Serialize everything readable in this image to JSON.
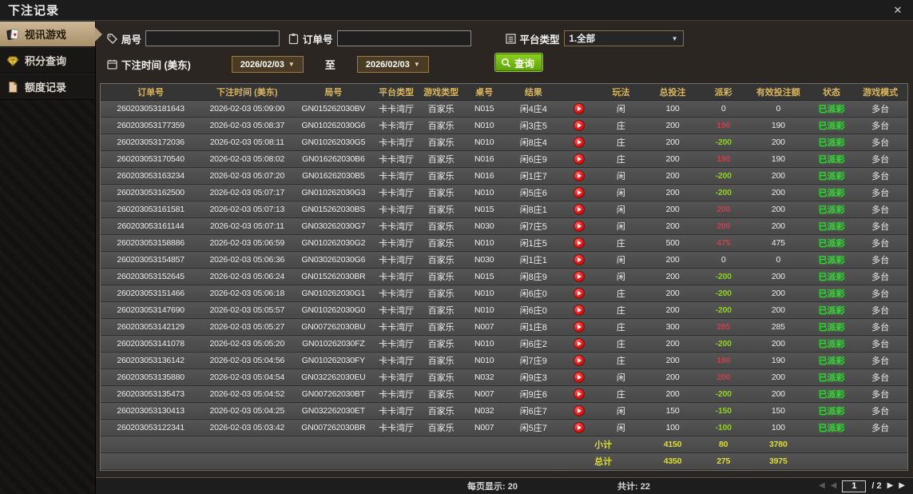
{
  "window": {
    "title": "下注记录",
    "close_label": "✕"
  },
  "sidebar": {
    "items": [
      {
        "id": "video-games",
        "label": "视讯游戏",
        "icon": "playing-cards-icon",
        "active": true
      },
      {
        "id": "points-query",
        "label": "积分查询",
        "icon": "diamond-icon",
        "active": false
      },
      {
        "id": "quota-records",
        "label": "额度记录",
        "icon": "document-icon",
        "active": false
      }
    ]
  },
  "filters": {
    "round_no": {
      "label": "局号",
      "value": "",
      "icon": "tag-icon"
    },
    "order_no": {
      "label": "订单号",
      "value": "",
      "icon": "clipboard-icon"
    },
    "platform_type": {
      "label": "平台类型",
      "value": "1.全部",
      "icon": "list-icon"
    },
    "bet_time": {
      "label": "下注时间 (美东)",
      "from": "2026/02/03",
      "to_label": "至",
      "to": "2026/02/03",
      "icon": "calendar-icon"
    },
    "search_button": {
      "label": "查询",
      "icon": "magnifier-icon"
    }
  },
  "table": {
    "headers": [
      "订单号",
      "下注时间 (美东)",
      "局号",
      "平台类型",
      "游戏类型",
      "桌号",
      "结果",
      "玩法",
      "总投注",
      "派彩",
      "有效投注额",
      "状态",
      "游戏模式"
    ],
    "rows": [
      {
        "order_id": "260203053181643",
        "bet_time": "2026-02-03 05:09:00",
        "round_id": "GN015262030BV",
        "platform": "卡卡湾厅",
        "game_type": "百家乐",
        "table_no": "N015",
        "result": "闲4庄4",
        "play_type": "闲",
        "total_bet": "100",
        "payout": "0",
        "valid_bet": "0",
        "status": "已派彩",
        "game_mode": "多台"
      },
      {
        "order_id": "260203053177359",
        "bet_time": "2026-02-03 05:08:37",
        "round_id": "GN010262030G6",
        "platform": "卡卡湾厅",
        "game_type": "百家乐",
        "table_no": "N010",
        "result": "闲3庄5",
        "play_type": "庄",
        "total_bet": "200",
        "payout": "190",
        "valid_bet": "190",
        "status": "已派彩",
        "game_mode": "多台"
      },
      {
        "order_id": "260203053172036",
        "bet_time": "2026-02-03 05:08:11",
        "round_id": "GN010262030G5",
        "platform": "卡卡湾厅",
        "game_type": "百家乐",
        "table_no": "N010",
        "result": "闲8庄4",
        "play_type": "庄",
        "total_bet": "200",
        "payout": "-200",
        "valid_bet": "200",
        "status": "已派彩",
        "game_mode": "多台"
      },
      {
        "order_id": "260203053170540",
        "bet_time": "2026-02-03 05:08:02",
        "round_id": "GN016262030B6",
        "platform": "卡卡湾厅",
        "game_type": "百家乐",
        "table_no": "N016",
        "result": "闲6庄9",
        "play_type": "庄",
        "total_bet": "200",
        "payout": "190",
        "valid_bet": "190",
        "status": "已派彩",
        "game_mode": "多台"
      },
      {
        "order_id": "260203053163234",
        "bet_time": "2026-02-03 05:07:20",
        "round_id": "GN016262030B5",
        "platform": "卡卡湾厅",
        "game_type": "百家乐",
        "table_no": "N016",
        "result": "闲1庄7",
        "play_type": "闲",
        "total_bet": "200",
        "payout": "-200",
        "valid_bet": "200",
        "status": "已派彩",
        "game_mode": "多台"
      },
      {
        "order_id": "260203053162500",
        "bet_time": "2026-02-03 05:07:17",
        "round_id": "GN010262030G3",
        "platform": "卡卡湾厅",
        "game_type": "百家乐",
        "table_no": "N010",
        "result": "闲5庄6",
        "play_type": "闲",
        "total_bet": "200",
        "payout": "-200",
        "valid_bet": "200",
        "status": "已派彩",
        "game_mode": "多台"
      },
      {
        "order_id": "260203053161581",
        "bet_time": "2026-02-03 05:07:13",
        "round_id": "GN015262030BS",
        "platform": "卡卡湾厅",
        "game_type": "百家乐",
        "table_no": "N015",
        "result": "闲8庄1",
        "play_type": "闲",
        "total_bet": "200",
        "payout": "200",
        "valid_bet": "200",
        "status": "已派彩",
        "game_mode": "多台"
      },
      {
        "order_id": "260203053161144",
        "bet_time": "2026-02-03 05:07:11",
        "round_id": "GN030262030G7",
        "platform": "卡卡湾厅",
        "game_type": "百家乐",
        "table_no": "N030",
        "result": "闲7庄5",
        "play_type": "闲",
        "total_bet": "200",
        "payout": "200",
        "valid_bet": "200",
        "status": "已派彩",
        "game_mode": "多台"
      },
      {
        "order_id": "260203053158886",
        "bet_time": "2026-02-03 05:06:59",
        "round_id": "GN010262030G2",
        "platform": "卡卡湾厅",
        "game_type": "百家乐",
        "table_no": "N010",
        "result": "闲1庄5",
        "play_type": "庄",
        "total_bet": "500",
        "payout": "475",
        "valid_bet": "475",
        "status": "已派彩",
        "game_mode": "多台"
      },
      {
        "order_id": "260203053154857",
        "bet_time": "2026-02-03 05:06:36",
        "round_id": "GN030262030G6",
        "platform": "卡卡湾厅",
        "game_type": "百家乐",
        "table_no": "N030",
        "result": "闲1庄1",
        "play_type": "闲",
        "total_bet": "200",
        "payout": "0",
        "valid_bet": "0",
        "status": "已派彩",
        "game_mode": "多台"
      },
      {
        "order_id": "260203053152645",
        "bet_time": "2026-02-03 05:06:24",
        "round_id": "GN015262030BR",
        "platform": "卡卡湾厅",
        "game_type": "百家乐",
        "table_no": "N015",
        "result": "闲8庄9",
        "play_type": "闲",
        "total_bet": "200",
        "payout": "-200",
        "valid_bet": "200",
        "status": "已派彩",
        "game_mode": "多台"
      },
      {
        "order_id": "260203053151466",
        "bet_time": "2026-02-03 05:06:18",
        "round_id": "GN010262030G1",
        "platform": "卡卡湾厅",
        "game_type": "百家乐",
        "table_no": "N010",
        "result": "闲6庄0",
        "play_type": "庄",
        "total_bet": "200",
        "payout": "-200",
        "valid_bet": "200",
        "status": "已派彩",
        "game_mode": "多台"
      },
      {
        "order_id": "260203053147690",
        "bet_time": "2026-02-03 05:05:57",
        "round_id": "GN010262030G0",
        "platform": "卡卡湾厅",
        "game_type": "百家乐",
        "table_no": "N010",
        "result": "闲6庄0",
        "play_type": "庄",
        "total_bet": "200",
        "payout": "-200",
        "valid_bet": "200",
        "status": "已派彩",
        "game_mode": "多台"
      },
      {
        "order_id": "260203053142129",
        "bet_time": "2026-02-03 05:05:27",
        "round_id": "GN007262030BU",
        "platform": "卡卡湾厅",
        "game_type": "百家乐",
        "table_no": "N007",
        "result": "闲1庄8",
        "play_type": "庄",
        "total_bet": "300",
        "payout": "285",
        "valid_bet": "285",
        "status": "已派彩",
        "game_mode": "多台"
      },
      {
        "order_id": "260203053141078",
        "bet_time": "2026-02-03 05:05:20",
        "round_id": "GN010262030FZ",
        "platform": "卡卡湾厅",
        "game_type": "百家乐",
        "table_no": "N010",
        "result": "闲6庄2",
        "play_type": "庄",
        "total_bet": "200",
        "payout": "-200",
        "valid_bet": "200",
        "status": "已派彩",
        "game_mode": "多台"
      },
      {
        "order_id": "260203053136142",
        "bet_time": "2026-02-03 05:04:56",
        "round_id": "GN010262030FY",
        "platform": "卡卡湾厅",
        "game_type": "百家乐",
        "table_no": "N010",
        "result": "闲7庄9",
        "play_type": "庄",
        "total_bet": "200",
        "payout": "190",
        "valid_bet": "190",
        "status": "已派彩",
        "game_mode": "多台"
      },
      {
        "order_id": "260203053135880",
        "bet_time": "2026-02-03 05:04:54",
        "round_id": "GN032262030EU",
        "platform": "卡卡湾厅",
        "game_type": "百家乐",
        "table_no": "N032",
        "result": "闲9庄3",
        "play_type": "闲",
        "total_bet": "200",
        "payout": "200",
        "valid_bet": "200",
        "status": "已派彩",
        "game_mode": "多台"
      },
      {
        "order_id": "260203053135473",
        "bet_time": "2026-02-03 05:04:52",
        "round_id": "GN007262030BT",
        "platform": "卡卡湾厅",
        "game_type": "百家乐",
        "table_no": "N007",
        "result": "闲9庄6",
        "play_type": "庄",
        "total_bet": "200",
        "payout": "-200",
        "valid_bet": "200",
        "status": "已派彩",
        "game_mode": "多台"
      },
      {
        "order_id": "260203053130413",
        "bet_time": "2026-02-03 05:04:25",
        "round_id": "GN032262030ET",
        "platform": "卡卡湾厅",
        "game_type": "百家乐",
        "table_no": "N032",
        "result": "闲6庄7",
        "play_type": "闲",
        "total_bet": "150",
        "payout": "-150",
        "valid_bet": "150",
        "status": "已派彩",
        "game_mode": "多台"
      },
      {
        "order_id": "260203053122341",
        "bet_time": "2026-02-03 05:03:42",
        "round_id": "GN007262030BR",
        "platform": "卡卡湾厅",
        "game_type": "百家乐",
        "table_no": "N007",
        "result": "闲5庄7",
        "play_type": "闲",
        "total_bet": "100",
        "payout": "-100",
        "valid_bet": "100",
        "status": "已派彩",
        "game_mode": "多台"
      }
    ],
    "subtotal": {
      "label": "小计",
      "total_bet": "4150",
      "payout": "80",
      "valid_bet": "3780"
    },
    "grand_total": {
      "label": "总计",
      "total_bet": "4350",
      "payout": "275",
      "valid_bet": "3975"
    }
  },
  "footer": {
    "page_size_label": "每页显示: 20",
    "total_count_label": "共计: 22",
    "page_input_value": "1",
    "page_total_label": "/ 2"
  },
  "colors": {
    "header_gold": "#d8b55e",
    "active_tab_tan": "#b8a17c",
    "search_green": "#6cb80e",
    "payout_win_red": "#c8404c",
    "payout_loss_green": "#8cd41a",
    "status_green": "#35d435",
    "summary_yellow": "#dede30"
  }
}
